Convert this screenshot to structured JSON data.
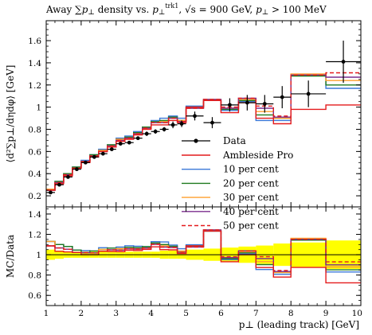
{
  "chart_data": {
    "type": "line",
    "title": "Away ∑p⊥ density vs. p⊥^trk1, √s = 900 GeV, p⊥ > 100 MeV",
    "title_parts": {
      "pre": "Away ",
      "sum_p": "∑p",
      "perp": "⊥",
      "density": " density vs. ",
      "p": "p",
      "perp2": "⊥",
      "sup": "trk1",
      "sqrt": ", √s = 900 GeV, ",
      "cut_p": "p",
      "perp3": "⊥",
      "cut": " > 100 MeV"
    },
    "xlabel": "p⊥ (leading track) [GeV]",
    "ylabel_main": "⟨d²∑p⊥/dηdφ⟩ [GeV]",
    "ylabel_ratio": "MC/Data",
    "xlim": [
      1,
      10
    ],
    "ylim_main": [
      0.1,
      1.78
    ],
    "ylim_ratio": [
      0.5,
      1.47
    ],
    "xticks": [
      "1",
      "2",
      "3",
      "4",
      "5",
      "6",
      "7",
      "8",
      "9",
      "10"
    ],
    "yticks_main": [
      "0.2",
      "0.4",
      "0.6",
      "0.8",
      "1",
      "1.2",
      "1.4",
      "1.6"
    ],
    "yticks_ratio": [
      "0.6",
      "0.8",
      "1",
      "1.2",
      "1.4"
    ],
    "bin_edges": [
      1,
      1.25,
      1.5,
      1.75,
      2,
      2.25,
      2.5,
      2.75,
      3,
      3.25,
      3.5,
      3.75,
      4,
      4.25,
      4.5,
      4.75,
      5,
      5.5,
      6,
      6.5,
      7,
      7.5,
      8,
      9,
      10
    ],
    "data": {
      "name": "Data",
      "x": [
        1.125,
        1.375,
        1.625,
        1.875,
        2.125,
        2.375,
        2.625,
        2.875,
        3.125,
        3.375,
        3.625,
        3.875,
        4.125,
        4.375,
        4.625,
        4.875,
        5.25,
        5.75,
        6.25,
        6.75,
        7.25,
        7.75,
        8.5,
        9.5
      ],
      "y": [
        0.23,
        0.3,
        0.37,
        0.44,
        0.5,
        0.55,
        0.58,
        0.62,
        0.67,
        0.68,
        0.72,
        0.76,
        0.78,
        0.8,
        0.84,
        0.85,
        0.92,
        0.86,
        1.02,
        1.04,
        1.03,
        1.09,
        1.12,
        1.41
      ],
      "yerr": [
        0.01,
        0.01,
        0.01,
        0.01,
        0.01,
        0.01,
        0.01,
        0.01,
        0.01,
        0.01,
        0.01,
        0.02,
        0.02,
        0.02,
        0.03,
        0.03,
        0.04,
        0.05,
        0.06,
        0.07,
        0.08,
        0.1,
        0.12,
        0.19
      ]
    },
    "series": [
      {
        "name": "Ambleside Pro",
        "color": "#e41a1c",
        "dash": false,
        "values": [
          0.25,
          0.31,
          0.38,
          0.45,
          0.5,
          0.55,
          0.6,
          0.64,
          0.69,
          0.71,
          0.75,
          0.8,
          0.84,
          0.84,
          0.88,
          0.86,
          1.0,
          1.06,
          0.95,
          1.04,
          0.9,
          0.85,
          0.98,
          1.02
        ]
      },
      {
        "name": "10 per cent",
        "color": "#3b78d8",
        "dash": false,
        "values": [
          0.26,
          0.33,
          0.4,
          0.46,
          0.52,
          0.57,
          0.62,
          0.66,
          0.72,
          0.74,
          0.78,
          0.82,
          0.88,
          0.9,
          0.92,
          0.9,
          1.01,
          1.06,
          0.97,
          1.05,
          0.88,
          0.88,
          1.29,
          1.17
        ]
      },
      {
        "name": "20 per cent",
        "color": "#1f7a1f",
        "dash": false,
        "values": [
          0.26,
          0.33,
          0.4,
          0.46,
          0.51,
          0.57,
          0.61,
          0.66,
          0.71,
          0.73,
          0.77,
          0.82,
          0.87,
          0.88,
          0.91,
          0.88,
          1.0,
          1.06,
          0.98,
          1.06,
          0.93,
          0.9,
          1.28,
          1.2
        ]
      },
      {
        "name": "30 per cent",
        "color": "#ff9f2e",
        "dash": false,
        "values": [
          0.26,
          0.32,
          0.39,
          0.45,
          0.51,
          0.56,
          0.61,
          0.65,
          0.71,
          0.72,
          0.76,
          0.81,
          0.86,
          0.87,
          0.9,
          0.88,
          0.99,
          1.07,
          0.99,
          1.07,
          0.96,
          0.9,
          1.3,
          1.24
        ]
      },
      {
        "name": "40 per cent",
        "color": "#7b2d8e",
        "dash": false,
        "values": [
          0.25,
          0.32,
          0.39,
          0.45,
          0.51,
          0.56,
          0.6,
          0.65,
          0.7,
          0.72,
          0.76,
          0.81,
          0.86,
          0.86,
          0.9,
          0.87,
          0.99,
          1.07,
          0.99,
          1.08,
          0.99,
          0.91,
          1.29,
          1.27
        ]
      },
      {
        "name": "50 per cent",
        "color": "#e41a1c",
        "dash": true,
        "values": [
          0.25,
          0.32,
          0.39,
          0.45,
          0.51,
          0.56,
          0.6,
          0.65,
          0.7,
          0.72,
          0.76,
          0.81,
          0.86,
          0.86,
          0.9,
          0.87,
          0.99,
          1.07,
          1.0,
          1.08,
          1.01,
          0.92,
          1.29,
          1.31
        ]
      }
    ],
    "ratio_band": {
      "color": "#ffff00",
      "half_width": [
        0.05,
        0.04,
        0.03,
        0.03,
        0.03,
        0.03,
        0.03,
        0.03,
        0.03,
        0.03,
        0.03,
        0.03,
        0.03,
        0.04,
        0.04,
        0.04,
        0.05,
        0.06,
        0.07,
        0.08,
        0.09,
        0.11,
        0.12,
        0.14
      ]
    },
    "legend_position": "center-right"
  }
}
